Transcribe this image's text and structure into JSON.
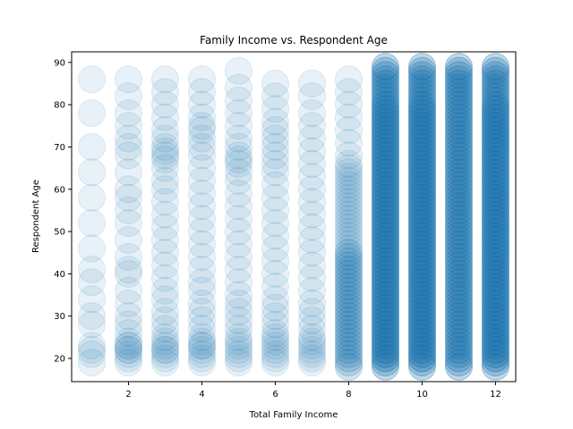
{
  "chart_data": {
    "type": "scatter",
    "title": "Family Income vs. Respondent Age",
    "xlabel": "Total Family Income",
    "ylabel": "Respondent Age",
    "xlim": [
      0.45,
      12.55
    ],
    "ylim": [
      14.5,
      92.5
    ],
    "xticks": [
      2,
      4,
      6,
      8,
      10,
      12
    ],
    "yticks": [
      20,
      30,
      40,
      50,
      60,
      70,
      80,
      90
    ],
    "marker_color": "#1f77b4",
    "marker_alpha": 0.1,
    "grid": false,
    "age_range": [
      18,
      89
    ],
    "points": [
      {
        "x": 1,
        "ages": [
          19,
          21,
          22,
          23,
          28,
          30,
          34,
          38,
          41,
          46,
          52,
          58,
          64,
          70,
          78,
          86
        ]
      },
      {
        "x": 2,
        "ages": [
          19,
          20,
          21,
          22,
          22,
          23,
          23,
          24,
          26,
          28,
          30,
          33,
          36,
          40,
          41,
          44,
          48,
          52,
          55,
          58,
          60,
          64,
          68,
          70,
          72,
          75,
          78,
          82,
          86
        ]
      },
      {
        "x": 3,
        "ages": [
          19,
          20,
          21,
          22,
          22,
          23,
          24,
          25,
          27,
          29,
          31,
          34,
          36,
          39,
          42,
          45,
          48,
          51,
          54,
          57,
          60,
          62,
          65,
          67,
          68,
          69,
          70,
          72,
          74,
          77,
          80,
          83,
          86
        ]
      },
      {
        "x": 4,
        "ages": [
          19,
          20,
          21,
          22,
          23,
          23,
          24,
          25,
          27,
          29,
          31,
          33,
          36,
          38,
          41,
          44,
          47,
          50,
          53,
          56,
          59,
          62,
          65,
          68,
          70,
          72,
          74,
          75,
          77,
          80,
          83,
          86
        ]
      },
      {
        "x": 5,
        "ages": [
          19,
          20,
          21,
          22,
          23,
          24,
          25,
          27,
          29,
          31,
          33,
          35,
          38,
          41,
          44,
          47,
          50,
          53,
          56,
          59,
          62,
          64,
          66,
          67,
          68,
          70,
          72,
          75,
          78,
          81,
          84,
          88
        ]
      },
      {
        "x": 6,
        "ages": [
          19,
          20,
          21,
          22,
          23,
          24,
          25,
          26,
          28,
          30,
          32,
          34,
          37,
          40,
          43,
          46,
          49,
          52,
          55,
          58,
          61,
          64,
          66,
          68,
          70,
          72,
          74,
          76,
          79,
          82,
          85
        ]
      },
      {
        "x": 7,
        "ages": [
          19,
          20,
          21,
          22,
          23,
          24,
          25,
          27,
          29,
          31,
          33,
          36,
          39,
          42,
          45,
          48,
          51,
          54,
          57,
          60,
          63,
          66,
          69,
          72,
          75,
          78,
          82,
          85
        ]
      }
    ]
  }
}
